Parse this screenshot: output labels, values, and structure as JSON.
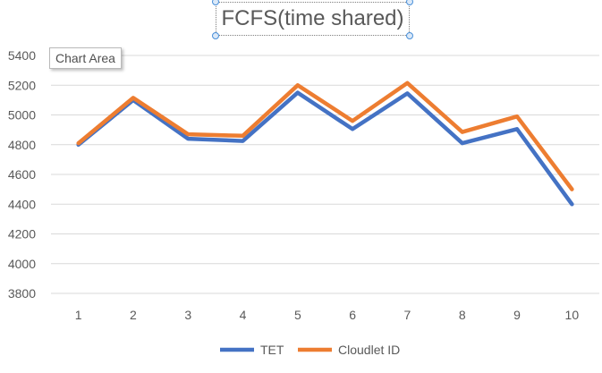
{
  "chart_data": {
    "type": "line",
    "title": "FCFS(time shared)",
    "categories": [
      "1",
      "2",
      "3",
      "4",
      "5",
      "6",
      "7",
      "8",
      "9",
      "10"
    ],
    "series": [
      {
        "name": "TET",
        "color": "#4472c4",
        "values": [
          4800,
          5100,
          4840,
          4825,
          5150,
          4905,
          5145,
          4810,
          4905,
          4400
        ]
      },
      {
        "name": "Cloudlet ID",
        "color": "#ed7d31",
        "values": [
          4810,
          5115,
          4870,
          4860,
          5200,
          4960,
          5215,
          4885,
          4990,
          4500
        ]
      }
    ],
    "ylim": [
      3800,
      5400
    ],
    "yticks": [
      3800,
      4000,
      4200,
      4400,
      4600,
      4800,
      5000,
      5200,
      5400
    ],
    "grid": true,
    "legend": "bottom"
  },
  "ui": {
    "tooltip": "Chart Area"
  }
}
